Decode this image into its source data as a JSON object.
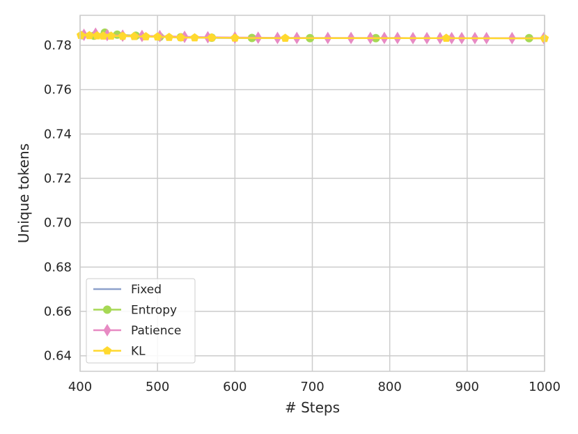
{
  "chart_data": {
    "type": "line",
    "title": "",
    "xlabel": "# Steps",
    "ylabel": "Unique tokens",
    "xlim": [
      400,
      1000
    ],
    "ylim": [
      0.633,
      0.7935
    ],
    "x_ticks": [
      400,
      500,
      600,
      700,
      800,
      900,
      1000
    ],
    "x_tick_labels": [
      "400",
      "500",
      "600",
      "700",
      "800",
      "900",
      "1000"
    ],
    "y_ticks": [
      0.64,
      0.66,
      0.68,
      0.7,
      0.72,
      0.74,
      0.76,
      0.78
    ],
    "y_tick_labels": [
      "0.64",
      "0.66",
      "0.68",
      "0.70",
      "0.72",
      "0.74",
      "0.76",
      "0.78"
    ],
    "grid": true,
    "legend_position": "lower-left",
    "series": [
      {
        "name": "Fixed",
        "color": "#8da0cb",
        "marker": "none",
        "x": [
          400,
          420,
          440,
          460,
          480,
          500,
          520,
          540,
          560,
          580,
          600,
          700,
          800,
          900,
          1000
        ],
        "y": [
          0.7845,
          0.7843,
          0.7842,
          0.7841,
          0.7841,
          0.784,
          0.7837,
          0.7835,
          0.7834,
          0.7833,
          0.7833,
          0.7832,
          0.7832,
          0.7832,
          0.7832
        ]
      },
      {
        "name": "Entropy",
        "color": "#a6d854",
        "marker": "circle",
        "x": [
          403,
          418,
          432,
          448,
          472,
          503,
          530,
          570,
          622,
          697,
          782,
          980
        ],
        "y": [
          0.7845,
          0.7843,
          0.7857,
          0.7848,
          0.7843,
          0.7838,
          0.7836,
          0.7834,
          0.7833,
          0.7832,
          0.7832,
          0.7832
        ]
      },
      {
        "name": "Patience",
        "color": "#e78ac3",
        "marker": "diamond",
        "x": [
          405,
          420,
          435,
          455,
          480,
          503,
          535,
          565,
          600,
          630,
          655,
          680,
          720,
          750,
          775,
          793,
          810,
          830,
          848,
          865,
          880,
          893,
          910,
          925,
          958,
          999
        ],
        "y": [
          0.7847,
          0.7852,
          0.7846,
          0.7843,
          0.7842,
          0.7841,
          0.7838,
          0.7836,
          0.7835,
          0.7834,
          0.7833,
          0.7833,
          0.7833,
          0.7833,
          0.7833,
          0.7833,
          0.7833,
          0.7832,
          0.7832,
          0.7832,
          0.7832,
          0.7832,
          0.7832,
          0.7832,
          0.7832,
          0.7832
        ]
      },
      {
        "name": "KL",
        "color": "#ffd92f",
        "marker": "pentagon",
        "x": [
          401,
          412,
          422,
          430,
          440,
          455,
          470,
          485,
          500,
          515,
          530,
          548,
          570,
          600,
          665,
          873,
          1000
        ],
        "y": [
          0.7845,
          0.7844,
          0.7843,
          0.7842,
          0.7842,
          0.7841,
          0.784,
          0.7839,
          0.7838,
          0.7836,
          0.7835,
          0.7834,
          0.7834,
          0.7833,
          0.7832,
          0.7832,
          0.7831
        ]
      }
    ]
  }
}
